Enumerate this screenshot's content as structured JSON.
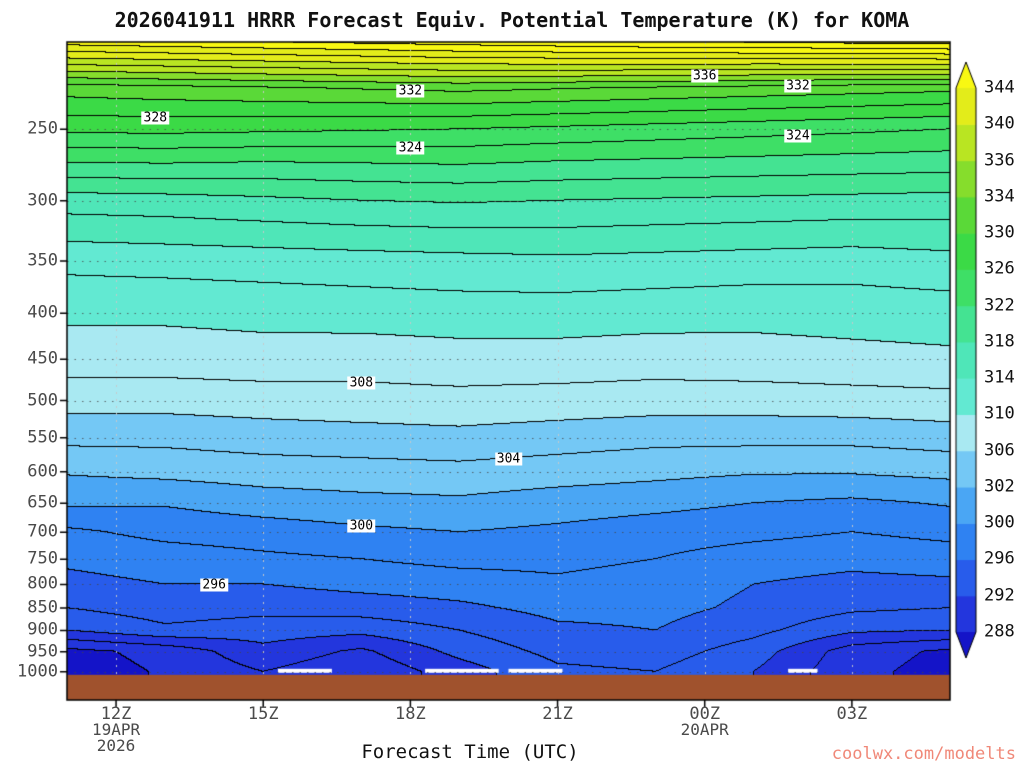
{
  "footer": {
    "text": "coolwx.com/modelts",
    "color": "#f08878"
  },
  "chart_data": {
    "type": "heatmap",
    "subtype": "filled-contour time-height cross-section",
    "title": "2026041911 HRRR Forecast Equiv. Potential Temperature (K) for KOMA",
    "xlabel": "Forecast Time (UTC)",
    "ylabel": "",
    "y_axis": "pressure (hPa), log scale, inverted",
    "t_range": [
      11,
      29
    ],
    "y_range": [
      200,
      1075
    ],
    "y_ticks": [
      250,
      300,
      350,
      400,
      450,
      500,
      550,
      600,
      650,
      700,
      750,
      800,
      850,
      900,
      950,
      1000
    ],
    "x_ticks": [
      {
        "t": 12,
        "label": "12Z",
        "sub": [
          "19APR",
          "2026"
        ]
      },
      {
        "t": 15,
        "label": "15Z",
        "sub": []
      },
      {
        "t": 18,
        "label": "18Z",
        "sub": []
      },
      {
        "t": 21,
        "label": "21Z",
        "sub": []
      },
      {
        "t": 24,
        "label": "00Z",
        "sub": [
          "20APR"
        ]
      },
      {
        "t": 27,
        "label": "03Z",
        "sub": []
      }
    ],
    "fill_levels": [
      288,
      292,
      296,
      300,
      302,
      306,
      310,
      314,
      318,
      322,
      326,
      330,
      334,
      336,
      340,
      344
    ],
    "fill_colors": [
      "#2336dd",
      "#285ceb",
      "#2f82f2",
      "#4aa6f4",
      "#74c8f5",
      "#a9e9f2",
      "#62e9d2",
      "#4fe6b8",
      "#44e392",
      "#3edf66",
      "#3bda46",
      "#5ad938",
      "#86dd2c",
      "#b9e522",
      "#e3ec1a"
    ],
    "under_color": "#1414c8",
    "over_color": "#f8f812",
    "colorbar_labels_top_to_bottom": [
      "344",
      "340",
      "336",
      "334",
      "330",
      "326",
      "322",
      "318",
      "314",
      "310",
      "306",
      "302",
      "300",
      "296",
      "292",
      "288"
    ],
    "contour_interval": 2,
    "contour_labels": [
      {
        "level": 328,
        "t": 12.8
      },
      {
        "level": 332,
        "t": 18
      },
      {
        "level": 324,
        "t": 18
      },
      {
        "level": 336,
        "t": 24
      },
      {
        "level": 332,
        "t": 25.9
      },
      {
        "level": 324,
        "t": 25.9
      },
      {
        "level": 308,
        "t": 17
      },
      {
        "level": 304,
        "t": 20
      },
      {
        "level": 300,
        "t": 17
      },
      {
        "level": 296,
        "t": 14
      }
    ],
    "ground": {
      "from_pressure": 1008,
      "color": "#a0522d"
    },
    "surface_gaps": [
      {
        "t1": 15.3,
        "t2": 16.4
      },
      {
        "t1": 18.3,
        "t2": 19.8
      },
      {
        "t1": 20.0,
        "t2": 21.1
      },
      {
        "t1": 25.7,
        "t2": 26.3
      }
    ],
    "grid": {
      "hours": [
        11,
        13,
        15,
        17,
        19,
        21,
        23,
        25,
        27,
        29
      ],
      "pressures": [
        200,
        225,
        250,
        275,
        300,
        350,
        400,
        450,
        500,
        550,
        600,
        650,
        700,
        750,
        800,
        850,
        900,
        950,
        1000,
        1075
      ],
      "values": [
        [
          345,
          345.5,
          346,
          346.5,
          347,
          347.5,
          348,
          348.2,
          348.6,
          349
        ],
        [
          331,
          331.4,
          331.8,
          332.2,
          332.6,
          332.2,
          331.8,
          331.4,
          331,
          330.6
        ],
        [
          326.5,
          326.6,
          326.4,
          326.2,
          326,
          325.6,
          325.2,
          324.8,
          324.4,
          324
        ],
        [
          321.5,
          321.6,
          321.4,
          321.6,
          321.8,
          321.4,
          321.2,
          321,
          320.8,
          320.6
        ],
        [
          317,
          317.2,
          317.6,
          318,
          318.2,
          318,
          317.8,
          317.6,
          317.4,
          317.2
        ],
        [
          312.6,
          312.8,
          313,
          313.2,
          313.4,
          313.6,
          313.4,
          313.2,
          313,
          313.4
        ],
        [
          310.4,
          310.4,
          310.6,
          310.8,
          311,
          311,
          310.8,
          310.6,
          310.8,
          311
        ],
        [
          309,
          309,
          309.2,
          309,
          309.2,
          309.2,
          309,
          309.2,
          309.4,
          309.6
        ],
        [
          306.8,
          306.8,
          307,
          307.2,
          307.4,
          307.2,
          307,
          307,
          307.2,
          307.4
        ],
        [
          304.6,
          304.6,
          305,
          305.2,
          305.4,
          305,
          304.6,
          304.6,
          304.6,
          305
        ],
        [
          302.2,
          302.6,
          303,
          303.2,
          303.4,
          303,
          302.6,
          302.2,
          302.2,
          302.6
        ],
        [
          300.4,
          300.2,
          301,
          301.4,
          301.6,
          301,
          300.6,
          300,
          299.6,
          300.2
        ],
        [
          297.6,
          298.6,
          299,
          299.6,
          300,
          299.6,
          299,
          298.6,
          298,
          298.6
        ],
        [
          296.4,
          297,
          297.6,
          298,
          298.6,
          298.6,
          298,
          297,
          296.6,
          297
        ],
        [
          295.4,
          296,
          296,
          296.6,
          297,
          297.6,
          297,
          296,
          295.4,
          295.6
        ],
        [
          294,
          295,
          294.6,
          295,
          295.6,
          296.6,
          296.6,
          295.6,
          294.4,
          294
        ],
        [
          292,
          293.6,
          293,
          292.6,
          294,
          295.6,
          296,
          294.6,
          292.4,
          292
        ],
        [
          287.4,
          288.6,
          291.4,
          289.6,
          292.6,
          294.6,
          295,
          293,
          289,
          287.6
        ],
        [
          287,
          288.2,
          290,
          288.4,
          291,
          293.6,
          294,
          292,
          288.6,
          287.2
        ],
        [
          287,
          288.2,
          290,
          288.4,
          291,
          293.6,
          294,
          292,
          288.6,
          287.2
        ]
      ]
    }
  }
}
